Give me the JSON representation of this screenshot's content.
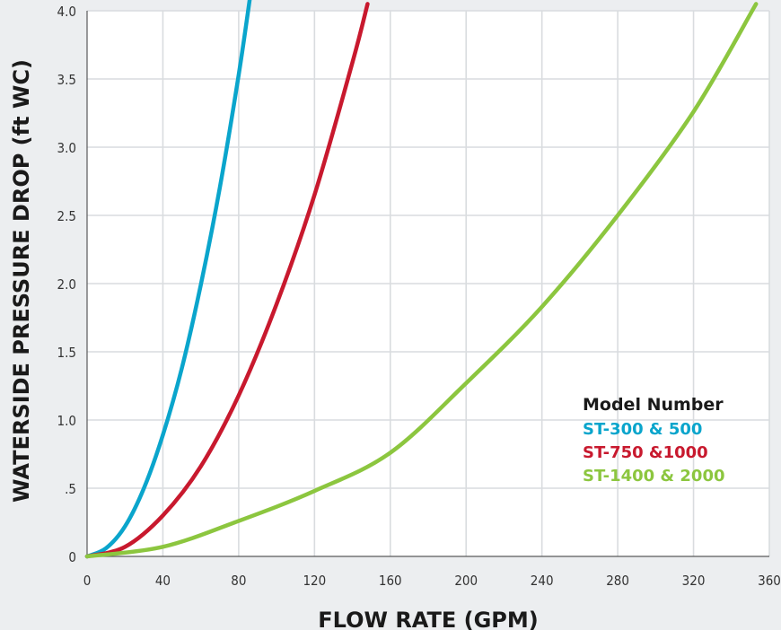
{
  "chart_data": {
    "type": "line",
    "title": "",
    "xlabel": "FLOW RATE (GPM)",
    "ylabel": "WATERSIDE PRESSURE DROP (ft WC)",
    "xlim": [
      0,
      360
    ],
    "ylim": [
      0,
      4.0
    ],
    "x_ticks": [
      0,
      40,
      80,
      120,
      160,
      200,
      240,
      280,
      320,
      360
    ],
    "x_tick_labels": [
      "0",
      "40",
      "80",
      "120",
      "160",
      "200",
      "240",
      "280",
      "320",
      "360"
    ],
    "y_ticks": [
      0,
      0.5,
      1.0,
      1.5,
      2.0,
      2.5,
      3.0,
      3.5,
      4.0
    ],
    "y_tick_labels": [
      "0",
      ".5",
      "1.0",
      "1.5",
      "2.0",
      "2.5",
      "3.0",
      "3.5",
      "4.0"
    ],
    "grid": true,
    "legend": {
      "title": "Model Number",
      "placement": "lower-right"
    },
    "series": [
      {
        "name": "ST-300 & 500",
        "color": "#0aa5cc",
        "x": [
          0,
          10,
          20,
          30,
          40,
          50,
          60,
          70,
          80,
          86
        ],
        "y": [
          0,
          0.06,
          0.22,
          0.5,
          0.89,
          1.38,
          1.99,
          2.7,
          3.53,
          4.1
        ]
      },
      {
        "name": "ST-750 &1000",
        "color": "#c8192e",
        "x": [
          0,
          20,
          40,
          60,
          80,
          100,
          120,
          140,
          148
        ],
        "y": [
          0,
          0.07,
          0.3,
          0.66,
          1.18,
          1.85,
          2.65,
          3.62,
          4.05
        ]
      },
      {
        "name": "ST-1400 & 2000",
        "color": "#8cc63f",
        "x": [
          0,
          40,
          80,
          120,
          160,
          200,
          240,
          280,
          320,
          353
        ],
        "y": [
          0,
          0.07,
          0.26,
          0.48,
          0.76,
          1.27,
          1.83,
          2.5,
          3.26,
          4.05
        ]
      }
    ]
  }
}
